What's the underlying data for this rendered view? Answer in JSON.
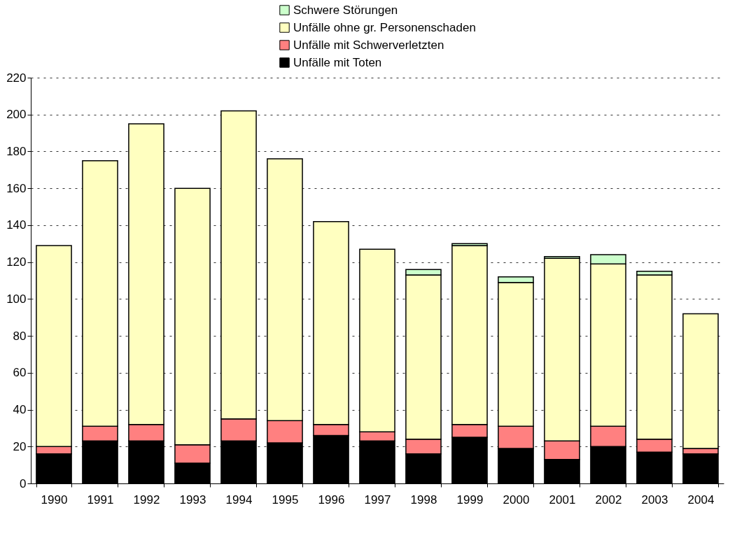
{
  "chart_data": {
    "type": "bar",
    "stacked": true,
    "categories": [
      "1990",
      "1991",
      "1992",
      "1993",
      "1994",
      "1995",
      "1996",
      "1997",
      "1998",
      "1999",
      "2000",
      "2001",
      "2002",
      "2003",
      "2004"
    ],
    "series": [
      {
        "name": "Unfälle mit Toten",
        "color": "#000000",
        "values": [
          16,
          23,
          23,
          11,
          23,
          22,
          26,
          23,
          16,
          25,
          19,
          13,
          20,
          17,
          16
        ]
      },
      {
        "name": "Unfälle mit Schwerverletzten",
        "color": "#ff8080",
        "values": [
          4,
          8,
          9,
          10,
          12,
          12,
          6,
          5,
          8,
          7,
          12,
          10,
          11,
          7,
          3
        ]
      },
      {
        "name": "Unfälle ohne gr. Personenschaden",
        "color": "#ffffc0",
        "values": [
          109,
          144,
          163,
          139,
          167,
          142,
          110,
          99,
          89,
          97,
          78,
          99,
          88,
          89,
          73
        ]
      },
      {
        "name": "Schwere Störungen",
        "color": "#ccffcc",
        "values": [
          null,
          null,
          null,
          null,
          null,
          null,
          null,
          null,
          3,
          1,
          3,
          1,
          5,
          2,
          null
        ]
      }
    ],
    "ylim": [
      0,
      220
    ],
    "yticks": [
      0,
      20,
      40,
      60,
      80,
      100,
      120,
      140,
      160,
      180,
      200,
      220
    ],
    "grid": "y",
    "legend": "top"
  }
}
